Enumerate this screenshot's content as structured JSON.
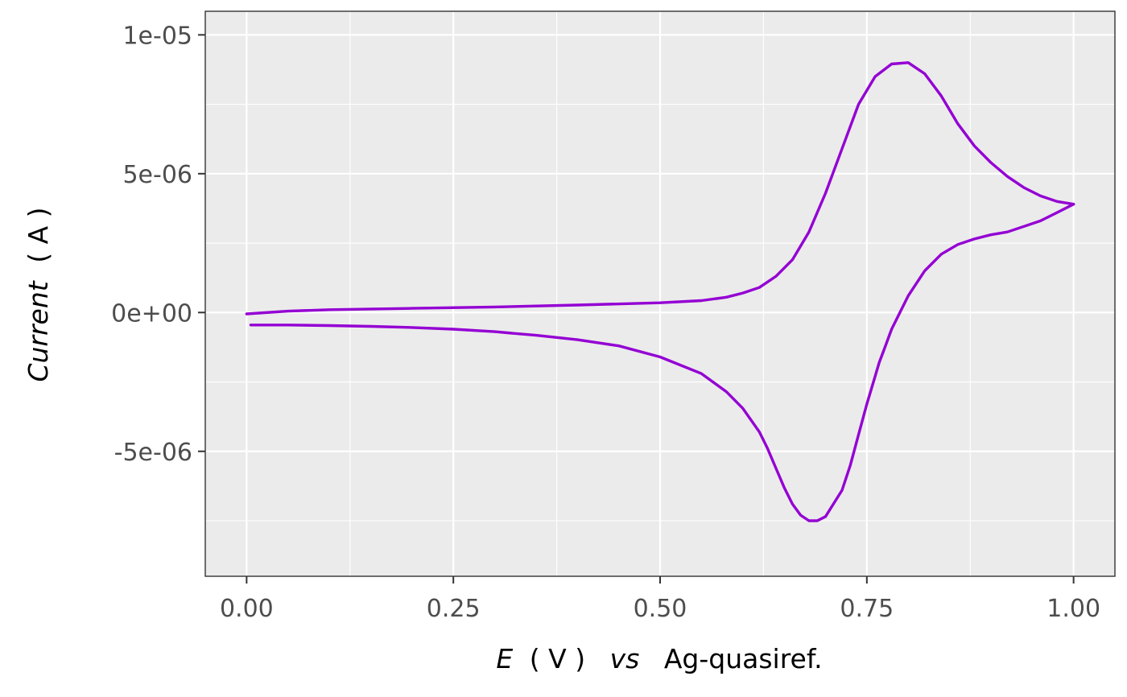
{
  "chart_data": {
    "type": "line",
    "xlabel": {
      "var": "E",
      "unit": "( V )",
      "vs": "vs",
      "ref": "Ag-quasiref."
    },
    "ylabel": {
      "var": "Current",
      "unit": "( A )"
    },
    "xlim": [
      -0.05,
      1.05
    ],
    "ylim": [
      -9.5e-06,
      1.085e-05
    ],
    "x_ticks": [
      {
        "value": 0.0,
        "label": "0.00"
      },
      {
        "value": 0.25,
        "label": "0.25"
      },
      {
        "value": 0.5,
        "label": "0.50"
      },
      {
        "value": 0.75,
        "label": "0.75"
      },
      {
        "value": 1.0,
        "label": "1.00"
      }
    ],
    "y_ticks": [
      {
        "value": -5e-06,
        "label": "-5e-06"
      },
      {
        "value": 0,
        "label": "0e+00"
      },
      {
        "value": 5e-06,
        "label": "5e-06"
      },
      {
        "value": 1e-05,
        "label": "1e-05"
      }
    ],
    "x_minor": [
      0.125,
      0.375,
      0.625,
      0.875
    ],
    "y_minor": [
      -7.5e-06,
      -2.5e-06,
      2.5e-06,
      7.5e-06
    ],
    "grid": true,
    "colors": {
      "series": "#9400D3",
      "panel": "#EBEBEB",
      "grid": "#FFFFFF"
    },
    "series": [
      {
        "x": [
          0.0,
          0.05,
          0.1,
          0.2,
          0.3,
          0.4,
          0.5,
          0.55,
          0.58,
          0.6,
          0.62,
          0.64,
          0.66,
          0.68,
          0.7,
          0.72,
          0.74,
          0.76,
          0.78,
          0.8,
          0.82,
          0.84,
          0.86,
          0.88,
          0.9,
          0.92,
          0.94,
          0.96,
          0.98,
          1.0
        ],
        "y": [
          -5e-08,
          5e-08,
          1e-07,
          1.5e-07,
          2e-07,
          2.7e-07,
          3.5e-07,
          4.3e-07,
          5.5e-07,
          7e-07,
          9e-07,
          1.3e-06,
          1.9e-06,
          2.9e-06,
          4.3e-06,
          5.9e-06,
          7.5e-06,
          8.5e-06,
          8.95e-06,
          9e-06,
          8.6e-06,
          7.8e-06,
          6.8e-06,
          6e-06,
          5.4e-06,
          4.9e-06,
          4.5e-06,
          4.2e-06,
          4e-06,
          3.9e-06
        ]
      },
      {
        "x": [
          1.0,
          0.98,
          0.96,
          0.94,
          0.92,
          0.9,
          0.88,
          0.86,
          0.84,
          0.82,
          0.8,
          0.78,
          0.77,
          0.765,
          0.76,
          0.75,
          0.74,
          0.73,
          0.72,
          0.7,
          0.69,
          0.68,
          0.67,
          0.66,
          0.65,
          0.64,
          0.63,
          0.62,
          0.6,
          0.58,
          0.55,
          0.5,
          0.45,
          0.4,
          0.35,
          0.3,
          0.25,
          0.2,
          0.15,
          0.1,
          0.05,
          0.005
        ],
        "y": [
          3.9e-06,
          3.6e-06,
          3.3e-06,
          3.1e-06,
          2.9e-06,
          2.8e-06,
          2.65e-06,
          2.45e-06,
          2.1e-06,
          1.5e-06,
          6e-07,
          -6e-07,
          -1.4e-06,
          -1.8e-06,
          -2.3e-06,
          -3.3e-06,
          -4.4e-06,
          -5.5e-06,
          -6.4e-06,
          -7.35e-06,
          -7.5e-06,
          -7.5e-06,
          -7.3e-06,
          -6.9e-06,
          -6.3e-06,
          -5.6e-06,
          -4.9e-06,
          -4.3e-06,
          -3.45e-06,
          -2.85e-06,
          -2.2e-06,
          -1.6e-06,
          -1.2e-06,
          -9.8e-07,
          -8.2e-07,
          -6.9e-07,
          -6e-07,
          -5.4e-07,
          -5e-07,
          -4.7e-07,
          -4.5e-07,
          -4.5e-07
        ]
      }
    ]
  }
}
